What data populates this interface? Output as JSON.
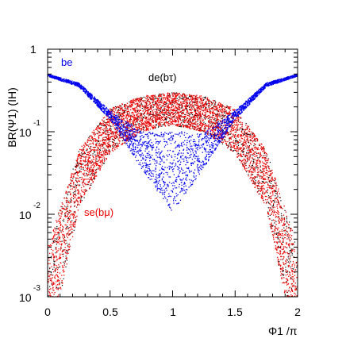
{
  "chart_data": {
    "type": "scatter",
    "title": "",
    "xlabel": "Φ1 /π",
    "ylabel": "BR(Ψ1) (IH)",
    "xlim": [
      0,
      2
    ],
    "ylim": [
      0.001,
      1
    ],
    "yscale": "log",
    "x_ticks": [
      "0",
      "0.5",
      "1",
      "1.5",
      "2"
    ],
    "y_ticks": [
      {
        "base": "10",
        "exp": "-3"
      },
      {
        "base": "10",
        "exp": "-2"
      },
      {
        "base": "10",
        "exp": "-1"
      },
      {
        "base": "1",
        "exp": ""
      }
    ],
    "grid": false,
    "legend": "none",
    "colors": {
      "be": "#0000ee",
      "de": "#000000",
      "se": "#ee0000"
    },
    "series": [
      {
        "name": "be",
        "label": "be",
        "x": [
          0,
          0.25,
          0.5,
          0.75,
          0.9,
          1.0,
          1.1,
          1.25,
          1.5,
          1.75,
          2
        ],
        "y_low": [
          0.47,
          0.35,
          0.14,
          0.036,
          0.017,
          0.0105,
          0.017,
          0.036,
          0.14,
          0.35,
          0.47
        ],
        "y_high": [
          0.5,
          0.39,
          0.18,
          0.1,
          0.1,
          0.1,
          0.1,
          0.1,
          0.18,
          0.39,
          0.5
        ]
      },
      {
        "name": "de",
        "label": "de(bτ)",
        "x": [
          0,
          0.25,
          0.5,
          0.75,
          1.0,
          1.25,
          1.5,
          1.75,
          2
        ],
        "y_low": [
          0.0002,
          0.012,
          0.055,
          0.1,
          0.12,
          0.1,
          0.055,
          0.012,
          0.0002
        ],
        "y_high": [
          0.004,
          0.06,
          0.19,
          0.27,
          0.3,
          0.27,
          0.19,
          0.06,
          0.004
        ]
      },
      {
        "name": "se",
        "label": "se(bμ)",
        "x": [
          0,
          0.25,
          0.5,
          0.75,
          1.0,
          1.25,
          1.5,
          1.75,
          2
        ],
        "y_low": [
          0.0002,
          0.012,
          0.055,
          0.1,
          0.12,
          0.1,
          0.055,
          0.012,
          0.0002
        ],
        "y_high": [
          0.004,
          0.06,
          0.19,
          0.27,
          0.3,
          0.27,
          0.19,
          0.06,
          0.004
        ]
      }
    ]
  }
}
